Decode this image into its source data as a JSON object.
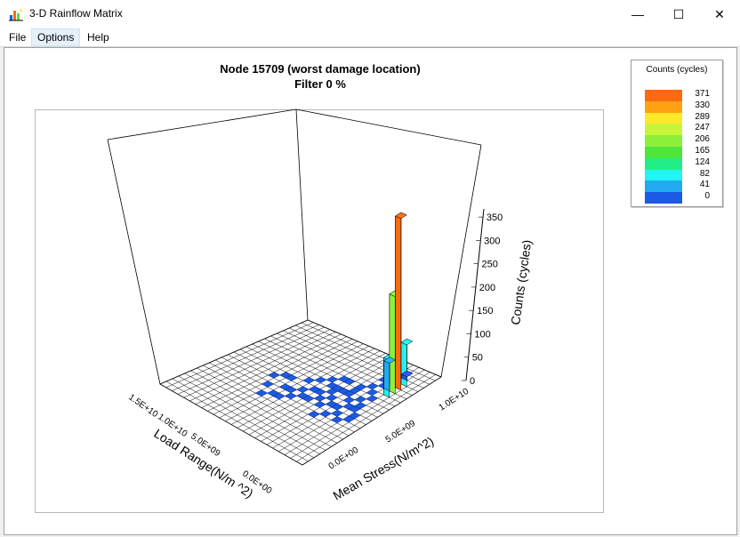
{
  "window": {
    "title": "3-D Rainflow Matrix",
    "minimize_glyph": "—",
    "maximize_glyph": "☐",
    "close_glyph": "✕"
  },
  "menu": [
    "File",
    "Options",
    "Help"
  ],
  "plot": {
    "title_line1": "Node 15709 (worst damage location)",
    "title_line2": "Filter 0 %"
  },
  "legend": {
    "title": "Counts (cycles)",
    "entries": [
      {
        "label": "371",
        "color": "#ff6a10"
      },
      {
        "label": "330",
        "color": "#ffa214"
      },
      {
        "label": "289",
        "color": "#ffe82a"
      },
      {
        "label": "247",
        "color": "#c8f53a"
      },
      {
        "label": "206",
        "color": "#8cf03a"
      },
      {
        "label": "165",
        "color": "#4ee63a"
      },
      {
        "label": "124",
        "color": "#22ee88"
      },
      {
        "label": "82",
        "color": "#20f4f4"
      },
      {
        "label": "41",
        "color": "#22aaf0"
      },
      {
        "label": "0",
        "color": "#1c5ae6"
      }
    ]
  },
  "chart_data": {
    "type": "bar3d",
    "xlabel": "Mean Stress(N/m^2)",
    "ylabel": "Load Range(N/m ^2)",
    "zlabel": "Counts (cycles)",
    "x_ticks": [
      "0.0E+00",
      "5.0E+09",
      "1.0E+10"
    ],
    "y_ticks": [
      "1.5E+10",
      "1.0E+10",
      "5.0E+09",
      "0.0E+00"
    ],
    "z_ticks": [
      "0",
      "50",
      "100",
      "150",
      "200",
      "250",
      "300",
      "350"
    ],
    "zlim": [
      0,
      371
    ],
    "bars": [
      {
        "mean_stress_bin": 4,
        "load_range_bin": 1,
        "count": 371
      },
      {
        "mean_stress_bin": 3,
        "load_range_bin": 1,
        "count": 210
      },
      {
        "mean_stress_bin": 5,
        "load_range_bin": 1,
        "count": 90
      },
      {
        "mean_stress_bin": 2,
        "load_range_bin": 1,
        "count": 80
      },
      {
        "mean_stress_bin": 3,
        "load_range_bin": 2,
        "count": 60
      },
      {
        "mean_stress_bin": 6,
        "load_range_bin": 2,
        "count": 8
      }
    ]
  }
}
